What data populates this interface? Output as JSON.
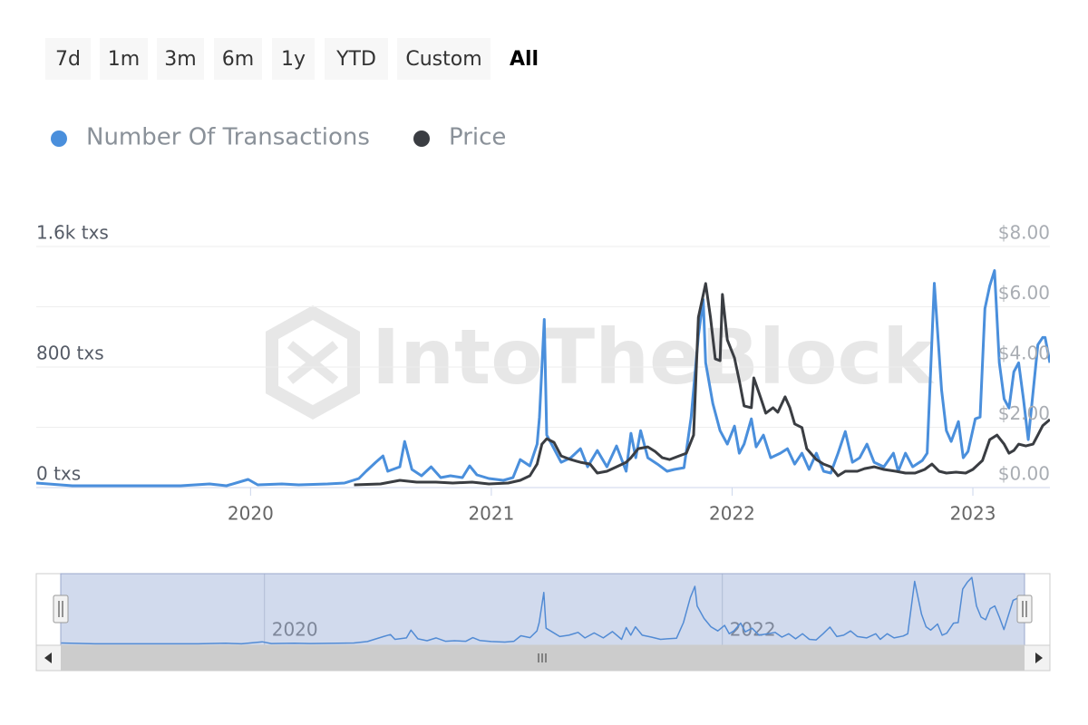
{
  "range_selector": {
    "buttons": [
      "7d",
      "1m",
      "3m",
      "6m",
      "1y",
      "YTD",
      "Custom",
      "All"
    ],
    "selected": 7
  },
  "watermark": "IntoTheBlock",
  "chart_data": {
    "type": "line",
    "xlim": [
      2019.11,
      2023.32
    ],
    "xticks": [
      2020,
      2021,
      2022,
      2023
    ],
    "ylim": [
      0,
      1600
    ],
    "yticks": [
      {
        "value": 0,
        "label": "0 txs"
      },
      {
        "value": 800,
        "label": "800 txs"
      },
      {
        "value": 1600,
        "label": "1.6k txs"
      }
    ],
    "y2lim": [
      0,
      8
    ],
    "y2ticks": [
      {
        "value": 0,
        "label": "$0.00"
      },
      {
        "value": 2,
        "label": "$2.00"
      },
      {
        "value": 4,
        "label": "$4.00"
      },
      {
        "value": 6,
        "label": "$6.00"
      },
      {
        "value": 8,
        "label": "$8.00"
      }
    ],
    "grid": true,
    "legend": "top-left",
    "series": [
      {
        "name": "Number Of Transactions",
        "color": "#4a8fdc",
        "x": [
          2019.11,
          2019.26,
          2019.41,
          2019.56,
          2019.71,
          2019.83,
          2019.9,
          2019.99,
          2020.03,
          2020.13,
          2020.2,
          2020.32,
          2020.39,
          2020.45,
          2020.48,
          2020.52,
          2020.55,
          2020.57,
          2020.62,
          2020.64,
          2020.67,
          2020.71,
          2020.75,
          2020.79,
          2020.83,
          2020.88,
          2020.91,
          2020.94,
          2020.99,
          2021.05,
          2021.09,
          2021.12,
          2021.16,
          2021.19,
          2021.2,
          2021.22,
          2021.23,
          2021.26,
          2021.29,
          2021.33,
          2021.37,
          2021.4,
          2021.44,
          2021.48,
          2021.52,
          2021.56,
          2021.58,
          2021.6,
          2021.62,
          2021.65,
          2021.69,
          2021.73,
          2021.76,
          2021.8,
          2021.83,
          2021.86,
          2021.88,
          2021.89,
          2021.92,
          2021.95,
          2021.98,
          2022.01,
          2022.03,
          2022.05,
          2022.08,
          2022.1,
          2022.13,
          2022.16,
          2022.2,
          2022.23,
          2022.26,
          2022.29,
          2022.32,
          2022.35,
          2022.38,
          2022.41,
          2022.44,
          2022.47,
          2022.5,
          2022.53,
          2022.56,
          2022.59,
          2022.63,
          2022.67,
          2022.69,
          2022.72,
          2022.75,
          2022.79,
          2022.81,
          2022.84,
          2022.87,
          2022.89,
          2022.91,
          2022.94,
          2022.96,
          2022.98,
          2023.01,
          2023.03,
          2023.05,
          2023.07,
          2023.09,
          2023.11,
          2023.13,
          2023.15,
          2023.17,
          2023.19,
          2023.21,
          2023.23,
          2023.27,
          2023.29,
          2023.3,
          2023.32
        ],
        "values": [
          30,
          12,
          12,
          12,
          12,
          24,
          12,
          54,
          18,
          24,
          18,
          24,
          30,
          60,
          108,
          168,
          210,
          108,
          138,
          306,
          120,
          78,
          138,
          66,
          78,
          66,
          144,
          84,
          60,
          48,
          66,
          186,
          144,
          288,
          468,
          1116,
          348,
          258,
          168,
          198,
          258,
          138,
          246,
          138,
          276,
          108,
          360,
          198,
          378,
          198,
          156,
          108,
          120,
          132,
          468,
          1008,
          1248,
          828,
          558,
          378,
          288,
          408,
          228,
          288,
          456,
          270,
          348,
          198,
          228,
          258,
          156,
          228,
          120,
          228,
          108,
          96,
          228,
          372,
          168,
          198,
          288,
          168,
          138,
          228,
          108,
          228,
          138,
          180,
          228,
          1356,
          648,
          378,
          306,
          438,
          198,
          240,
          456,
          468,
          1188,
          1338,
          1440,
          828,
          588,
          528,
          768,
          828,
          588,
          318,
          948,
          996,
          996,
          828
        ]
      },
      {
        "name": "Price",
        "color": "#3a3d42",
        "axis": "y2",
        "x": [
          2020.43,
          2020.54,
          2020.62,
          2020.69,
          2020.77,
          2020.84,
          2020.92,
          2020.99,
          2021.07,
          2021.12,
          2021.16,
          2021.19,
          2021.21,
          2021.23,
          2021.26,
          2021.29,
          2021.33,
          2021.37,
          2021.41,
          2021.44,
          2021.48,
          2021.52,
          2021.56,
          2021.58,
          2021.61,
          2021.65,
          2021.68,
          2021.71,
          2021.74,
          2021.78,
          2021.81,
          2021.84,
          2021.86,
          2021.89,
          2021.91,
          2021.93,
          2021.95,
          2021.96,
          2021.98,
          2022.01,
          2022.03,
          2022.05,
          2022.08,
          2022.09,
          2022.12,
          2022.14,
          2022.17,
          2022.19,
          2022.22,
          2022.24,
          2022.26,
          2022.29,
          2022.31,
          2022.35,
          2022.38,
          2022.41,
          2022.44,
          2022.47,
          2022.52,
          2022.55,
          2022.59,
          2022.63,
          2022.68,
          2022.72,
          2022.76,
          2022.8,
          2022.83,
          2022.86,
          2022.89,
          2022.93,
          2022.97,
          2023.0,
          2023.04,
          2023.07,
          2023.1,
          2023.13,
          2023.15,
          2023.17,
          2023.19,
          2023.22,
          2023.25,
          2023.27,
          2023.29,
          2023.32
        ],
        "values": [
          0.09,
          0.12,
          0.24,
          0.18,
          0.18,
          0.15,
          0.18,
          0.12,
          0.15,
          0.24,
          0.39,
          0.78,
          1.44,
          1.62,
          1.5,
          1.05,
          0.93,
          0.84,
          0.78,
          0.48,
          0.54,
          0.69,
          0.84,
          0.99,
          1.29,
          1.35,
          1.2,
          0.99,
          0.93,
          1.05,
          1.14,
          1.74,
          5.65,
          6.77,
          5.65,
          4.27,
          4.21,
          6.41,
          4.9,
          4.3,
          3.55,
          2.71,
          2.65,
          3.64,
          2.95,
          2.47,
          2.65,
          2.5,
          3.01,
          2.65,
          2.11,
          1.99,
          1.29,
          0.93,
          0.78,
          0.69,
          0.39,
          0.54,
          0.54,
          0.63,
          0.69,
          0.6,
          0.54,
          0.48,
          0.48,
          0.6,
          0.78,
          0.54,
          0.48,
          0.51,
          0.48,
          0.6,
          0.9,
          1.59,
          1.74,
          1.44,
          1.14,
          1.23,
          1.44,
          1.38,
          1.44,
          1.74,
          2.05,
          2.26
        ]
      }
    ]
  }
}
